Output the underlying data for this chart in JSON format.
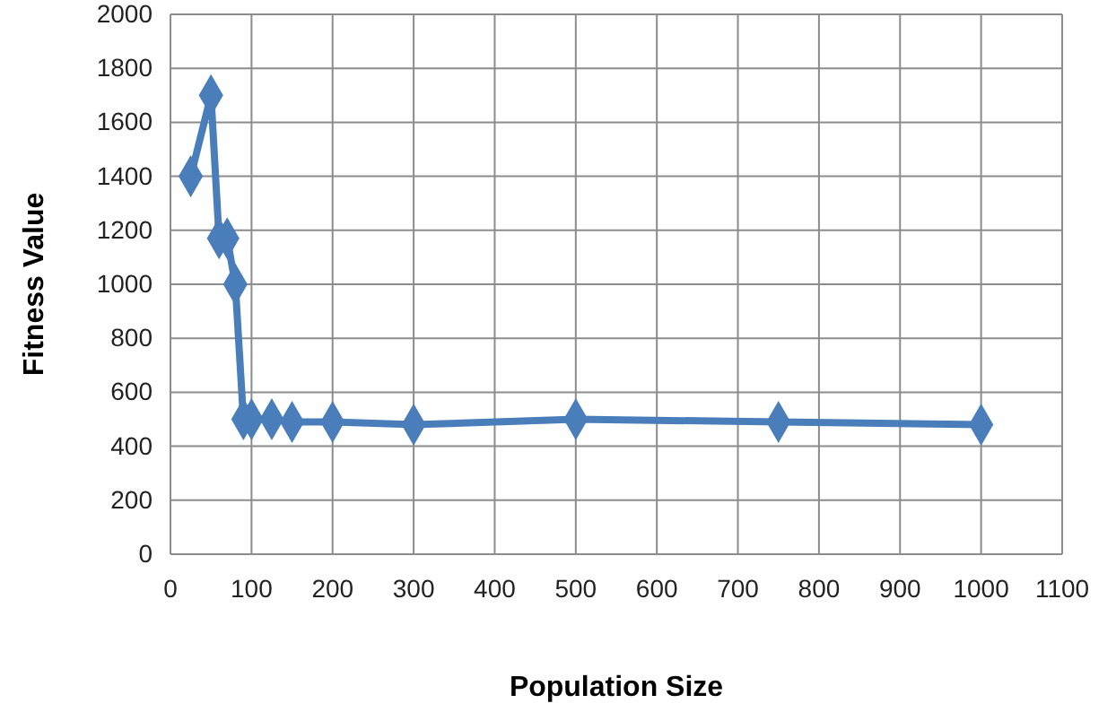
{
  "chart_data": {
    "type": "line",
    "xlabel": "Population Size",
    "ylabel": "Fitness Value",
    "x": [
      25,
      50,
      60,
      70,
      80,
      90,
      100,
      125,
      150,
      200,
      300,
      500,
      750,
      1000
    ],
    "series": [
      {
        "color": "#4a7ebb",
        "values": [
          1400,
          1700,
          1170,
          1170,
          1000,
          500,
          500,
          500,
          490,
          490,
          480,
          500,
          490,
          480
        ]
      }
    ],
    "xlim": [
      0,
      1100
    ],
    "xticks": [
      0,
      100,
      200,
      300,
      400,
      500,
      600,
      700,
      800,
      900,
      1000,
      1100
    ],
    "ylim": [
      0,
      2000
    ],
    "yticks": [
      0,
      200,
      400,
      600,
      800,
      1000,
      1200,
      1400,
      1600,
      1800,
      2000
    ],
    "grid": true,
    "marker": "diamond",
    "line_style": "solid"
  }
}
